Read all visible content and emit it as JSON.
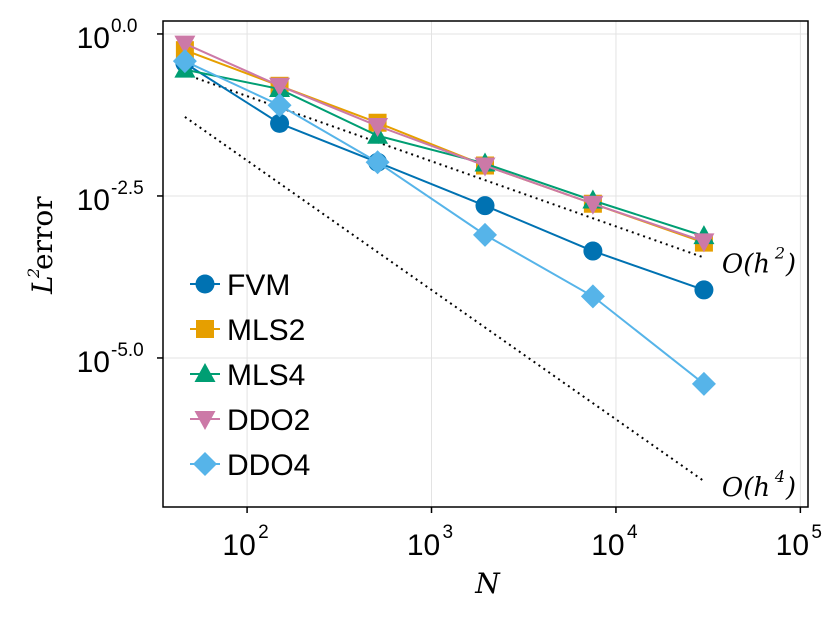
{
  "chart_data": {
    "type": "line",
    "xscale": "log10",
    "yscale": "log10",
    "xlabel": "N",
    "ylabel": {
      "base": "L",
      "sup": "2",
      "rest": " error"
    },
    "xlim": [
      35,
      110000
    ],
    "ylim": [
      -7.3,
      0.2
    ],
    "grid": true,
    "legend_position": "left-bottom",
    "xticks": [
      {
        "value": 2,
        "base": "10",
        "exp": "2"
      },
      {
        "value": 3,
        "base": "10",
        "exp": "3"
      },
      {
        "value": 4,
        "base": "10",
        "exp": "4"
      },
      {
        "value": 5,
        "base": "10",
        "exp": "5"
      }
    ],
    "yticks": [
      {
        "value": 0.0,
        "base": "10",
        "exp": "0.0"
      },
      {
        "value": -2.5,
        "base": "10",
        "exp": "-2.5"
      },
      {
        "value": -5.0,
        "base": "10",
        "exp": "-5.0"
      }
    ],
    "x": [
      46,
      150,
      510,
      1950,
      7500,
      30000
    ],
    "series": [
      {
        "name": "FVM",
        "color": "#0072B2",
        "marker": "circle",
        "log10_values": [
          -0.45,
          -1.38,
          -1.98,
          -2.65,
          -3.35,
          -3.95
        ]
      },
      {
        "name": "MLS2",
        "color": "#E69F00",
        "marker": "square",
        "log10_values": [
          -0.25,
          -0.8,
          -1.37,
          -2.03,
          -2.62,
          -3.22
        ]
      },
      {
        "name": "MLS4",
        "color": "#009E73",
        "marker": "triangle-up",
        "log10_values": [
          -0.55,
          -0.85,
          -1.57,
          -2.0,
          -2.57,
          -3.12
        ]
      },
      {
        "name": "DDO2",
        "color": "#CC79A7",
        "marker": "triangle-down",
        "log10_values": [
          -0.15,
          -0.8,
          -1.42,
          -2.03,
          -2.62,
          -3.2
        ]
      },
      {
        "name": "DDO4",
        "color": "#56B4E9",
        "marker": "diamond",
        "log10_values": [
          -0.42,
          -1.1,
          -1.98,
          -3.1,
          -4.05,
          -5.4
        ]
      }
    ],
    "reference_lines": [
      {
        "label": "O(h",
        "sup": "2",
        "close": ")",
        "x": [
          46,
          30000
        ],
        "log10_values": [
          -0.62,
          -3.45
        ]
      },
      {
        "label": "O(h",
        "sup": "4",
        "close": ")",
        "x": [
          46,
          30000
        ],
        "log10_values": [
          -1.28,
          -6.9
        ]
      }
    ]
  }
}
